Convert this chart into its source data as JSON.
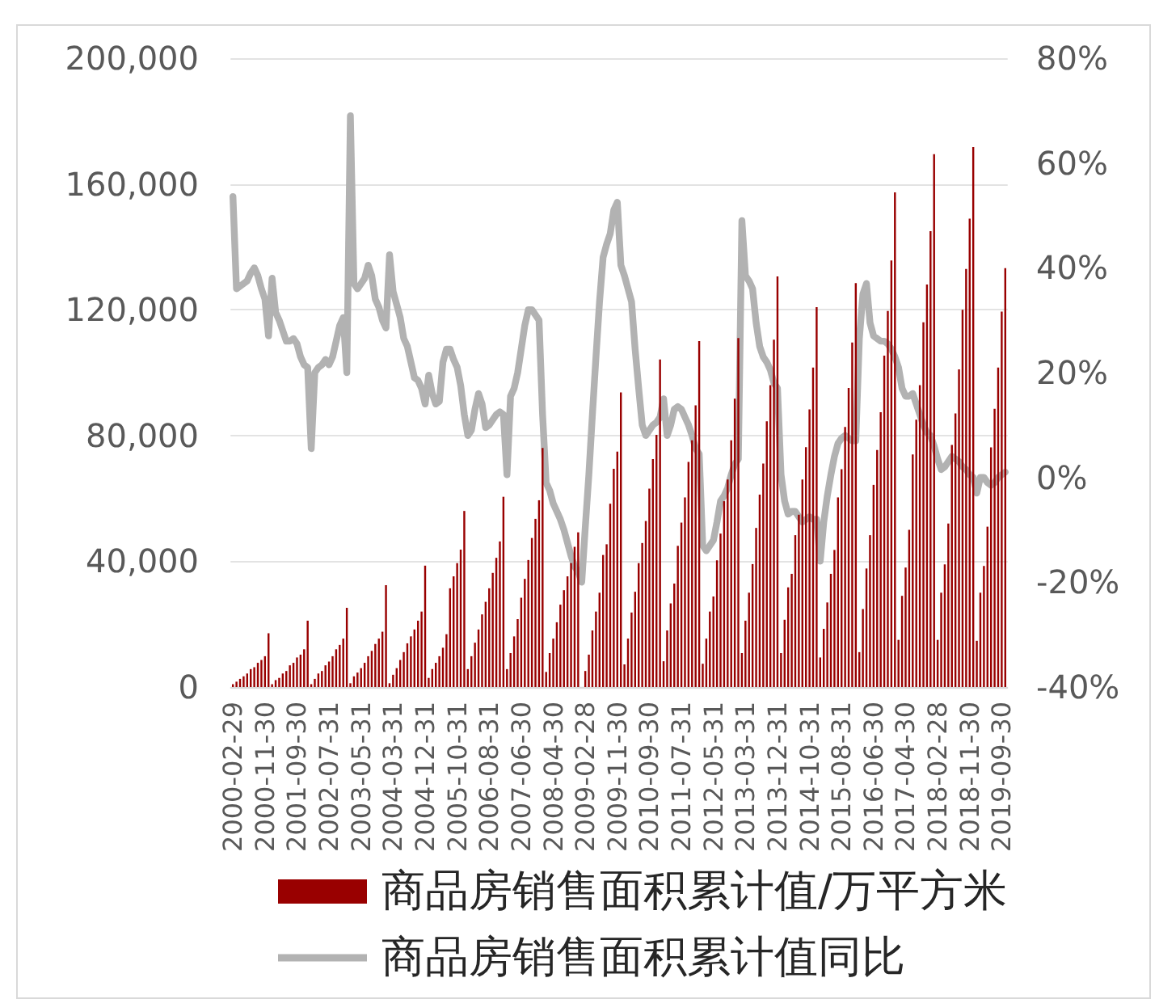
{
  "chart_data": {
    "type": "bar",
    "categories": [
      "2000-02-29",
      null,
      null,
      null,
      null,
      null,
      null,
      null,
      null,
      "2000-11-30",
      null,
      null,
      null,
      null,
      null,
      null,
      null,
      null,
      "2001-09-30",
      null,
      null,
      null,
      null,
      null,
      null,
      null,
      null,
      "2002-07-31",
      null,
      null,
      null,
      null,
      null,
      null,
      null,
      null,
      "2003-05-31",
      null,
      null,
      null,
      null,
      null,
      null,
      null,
      null,
      "2004-03-31",
      null,
      null,
      null,
      null,
      null,
      null,
      null,
      null,
      "2004-12-31",
      null,
      null,
      null,
      null,
      null,
      null,
      null,
      null,
      "2005-10-31",
      null,
      null,
      null,
      null,
      null,
      null,
      null,
      null,
      "2006-08-31",
      null,
      null,
      null,
      null,
      null,
      null,
      null,
      null,
      "2007-06-30",
      null,
      null,
      null,
      null,
      null,
      null,
      null,
      null,
      "2008-04-30",
      null,
      null,
      null,
      null,
      null,
      null,
      null,
      null,
      "2009-02-28",
      null,
      null,
      null,
      null,
      null,
      null,
      null,
      null,
      "2009-11-30",
      null,
      null,
      null,
      null,
      null,
      null,
      null,
      null,
      "2010-09-30",
      null,
      null,
      null,
      null,
      null,
      null,
      null,
      null,
      "2011-07-31",
      null,
      null,
      null,
      null,
      null,
      null,
      null,
      null,
      "2012-05-31",
      null,
      null,
      null,
      null,
      null,
      null,
      null,
      null,
      "2013-03-31",
      null,
      null,
      null,
      null,
      null,
      null,
      null,
      null,
      "2013-12-31",
      null,
      null,
      null,
      null,
      null,
      null,
      null,
      null,
      "2014-10-31",
      null,
      null,
      null,
      null,
      null,
      null,
      null,
      null,
      "2015-08-31",
      null,
      null,
      null,
      null,
      null,
      null,
      null,
      null,
      "2016-06-30",
      null,
      null,
      null,
      null,
      null,
      null,
      null,
      null,
      "2017-04-30",
      null,
      null,
      null,
      null,
      null,
      null,
      null,
      null,
      "2018-02-28",
      null,
      null,
      null,
      null,
      null,
      null,
      null,
      null,
      "2018-11-30",
      null,
      null,
      null,
      null,
      null,
      null,
      null,
      null,
      "2019-09-30",
      null
    ],
    "series": [
      {
        "name": "商品房销售面积累计值/万平方米",
        "color": "#990000",
        "values": [
          900,
          1700,
          2600,
          3400,
          4300,
          5700,
          6300,
          7700,
          8600,
          9800,
          17100,
          900,
          2200,
          2900,
          4300,
          5100,
          6900,
          7700,
          9400,
          10300,
          12000,
          21100,
          900,
          2600,
          4300,
          5100,
          6900,
          8100,
          9800,
          12000,
          13400,
          15400,
          25200,
          1200,
          3400,
          4600,
          6000,
          7700,
          9800,
          11500,
          13700,
          15400,
          17600,
          32400,
          1200,
          3900,
          6000,
          8600,
          11100,
          13900,
          16100,
          18300,
          21100,
          24000,
          38600,
          2900,
          5700,
          7700,
          9800,
          12500,
          16800,
          31400,
          35200,
          39400,
          43700,
          56000,
          5700,
          9800,
          14100,
          18300,
          23100,
          27100,
          31400,
          36300,
          41100,
          46300,
          60500,
          5700,
          10800,
          16100,
          21600,
          28400,
          34400,
          40400,
          47400,
          53500,
          59400,
          76000,
          4800,
          10800,
          15400,
          20600,
          26200,
          30800,
          35200,
          39400,
          44600,
          49200,
          null,
          5100,
          10300,
          18000,
          24000,
          30000,
          42000,
          45400,
          58300,
          69400,
          74900,
          93700,
          7200,
          15400,
          23700,
          30300,
          39400,
          45800,
          52800,
          63100,
          72500,
          80200,
          104200,
          8200,
          18000,
          26600,
          32900,
          44900,
          52300,
          60300,
          71600,
          78500,
          89600,
          110000,
          7400,
          15400,
          24000,
          28800,
          40300,
          48800,
          59100,
          66000,
          78500,
          91700,
          111000,
          10800,
          21100,
          30000,
          39100,
          50600,
          61200,
          71100,
          84500,
          96000,
          110500,
          130600,
          10800,
          21400,
          31700,
          36000,
          48300,
          54800,
          66000,
          76300,
          88300,
          101600,
          120800,
          9400,
          18500,
          26900,
          36000,
          43600,
          60300,
          69300,
          82700,
          95100,
          109600,
          128500,
          11100,
          24800,
          37700,
          48300,
          64300,
          75400,
          87400,
          105400,
          119600,
          135700,
          157300,
          15000,
          29000,
          38000,
          50000,
          74000,
          85000,
          96000,
          116000,
          128000,
          145000,
          169500,
          15000,
          30000,
          39000,
          52000,
          77000,
          87000,
          101000,
          120000,
          133000,
          149000,
          171700,
          14700,
          30000,
          38500,
          51000,
          76200,
          88500,
          101600,
          119400,
          133200
        ]
      },
      {
        "name": "商品房销售面积累计值同比",
        "type": "line",
        "axis": "y2",
        "color": "#b2b2b2",
        "values": [
          53.6,
          36,
          36.5,
          37,
          37.5,
          39,
          40,
          38.5,
          36,
          34,
          27,
          38,
          31.5,
          30,
          28,
          26,
          26,
          26.5,
          25.5,
          23,
          21.5,
          21,
          5.5,
          20,
          21,
          21.5,
          22.5,
          21.5,
          23,
          26,
          29,
          30.5,
          20,
          69,
          37,
          36,
          37,
          38,
          40.5,
          38.5,
          34,
          32.5,
          30,
          28.5,
          42.5,
          35.5,
          33,
          30.5,
          26.5,
          25,
          22,
          19,
          18.5,
          17,
          14,
          19.5,
          16,
          14,
          14.5,
          22,
          24.5,
          24.5,
          22.5,
          21,
          17.5,
          12,
          8,
          9,
          13,
          16,
          14,
          9.5,
          10,
          11,
          12,
          12.5,
          12,
          0.5,
          15.5,
          17,
          20,
          24.5,
          29,
          32,
          32,
          31,
          30,
          12,
          -1,
          -2.5,
          -5,
          -6.5,
          -8,
          -10,
          -12.5,
          -15,
          -17,
          -18,
          -20,
          -9.5,
          0.5,
          12,
          23,
          33.5,
          42,
          44.5,
          46.5,
          51,
          52.5,
          40.5,
          38.5,
          36,
          33.5,
          24.5,
          17,
          10,
          8,
          9,
          10,
          10.5,
          11.5,
          15,
          8,
          10,
          13,
          13.5,
          13,
          11.5,
          10,
          8,
          5.5,
          4.5,
          -13,
          -14,
          -13,
          -12,
          -8.5,
          -4.5,
          -3.5,
          -2,
          0.5,
          2.5,
          3.5,
          49,
          38.5,
          37.5,
          36,
          29.5,
          25,
          23,
          22,
          20.5,
          18,
          17,
          0.5,
          -4.5,
          -7,
          -6.5,
          -6.5,
          -7.5,
          -8.5,
          -8,
          -7.5,
          -8,
          -8,
          -16,
          -8.5,
          -3.5,
          0.5,
          4,
          6.5,
          7.5,
          8,
          7.5,
          7,
          7,
          26.5,
          35,
          37,
          29.5,
          27,
          26.5,
          26,
          26,
          25.5,
          24.5,
          23,
          21,
          17,
          15.5,
          15.5,
          16,
          14,
          12,
          10,
          8.5,
          8,
          6,
          3.5,
          1.5,
          2,
          3,
          4,
          3.5,
          3,
          2,
          1.5,
          0.5,
          0,
          -3,
          0,
          0,
          -1,
          -1.5,
          -1,
          0,
          0.5,
          1
        ]
      }
    ],
    "ylim": [
      0,
      200000
    ],
    "yticks": [
      {
        "value": 0,
        "label": "0"
      },
      {
        "value": 40000,
        "label": "40,000"
      },
      {
        "value": 80000,
        "label": "80,000"
      },
      {
        "value": 120000,
        "label": "120,000"
      },
      {
        "value": 160000,
        "label": "160,000"
      },
      {
        "value": 200000,
        "label": "200,000"
      }
    ],
    "y2lim": [
      -40,
      80
    ],
    "y2ticks": [
      {
        "value": -40,
        "label": "-40%"
      },
      {
        "value": -20,
        "label": "-20%"
      },
      {
        "value": 0,
        "label": "0%"
      },
      {
        "value": 20,
        "label": "20%"
      },
      {
        "value": 40,
        "label": "40%"
      },
      {
        "value": 60,
        "label": "60%"
      },
      {
        "value": 80,
        "label": "80%"
      }
    ],
    "grid": "y",
    "legend": "bottom",
    "marker": "none",
    "line_style": "solid"
  }
}
